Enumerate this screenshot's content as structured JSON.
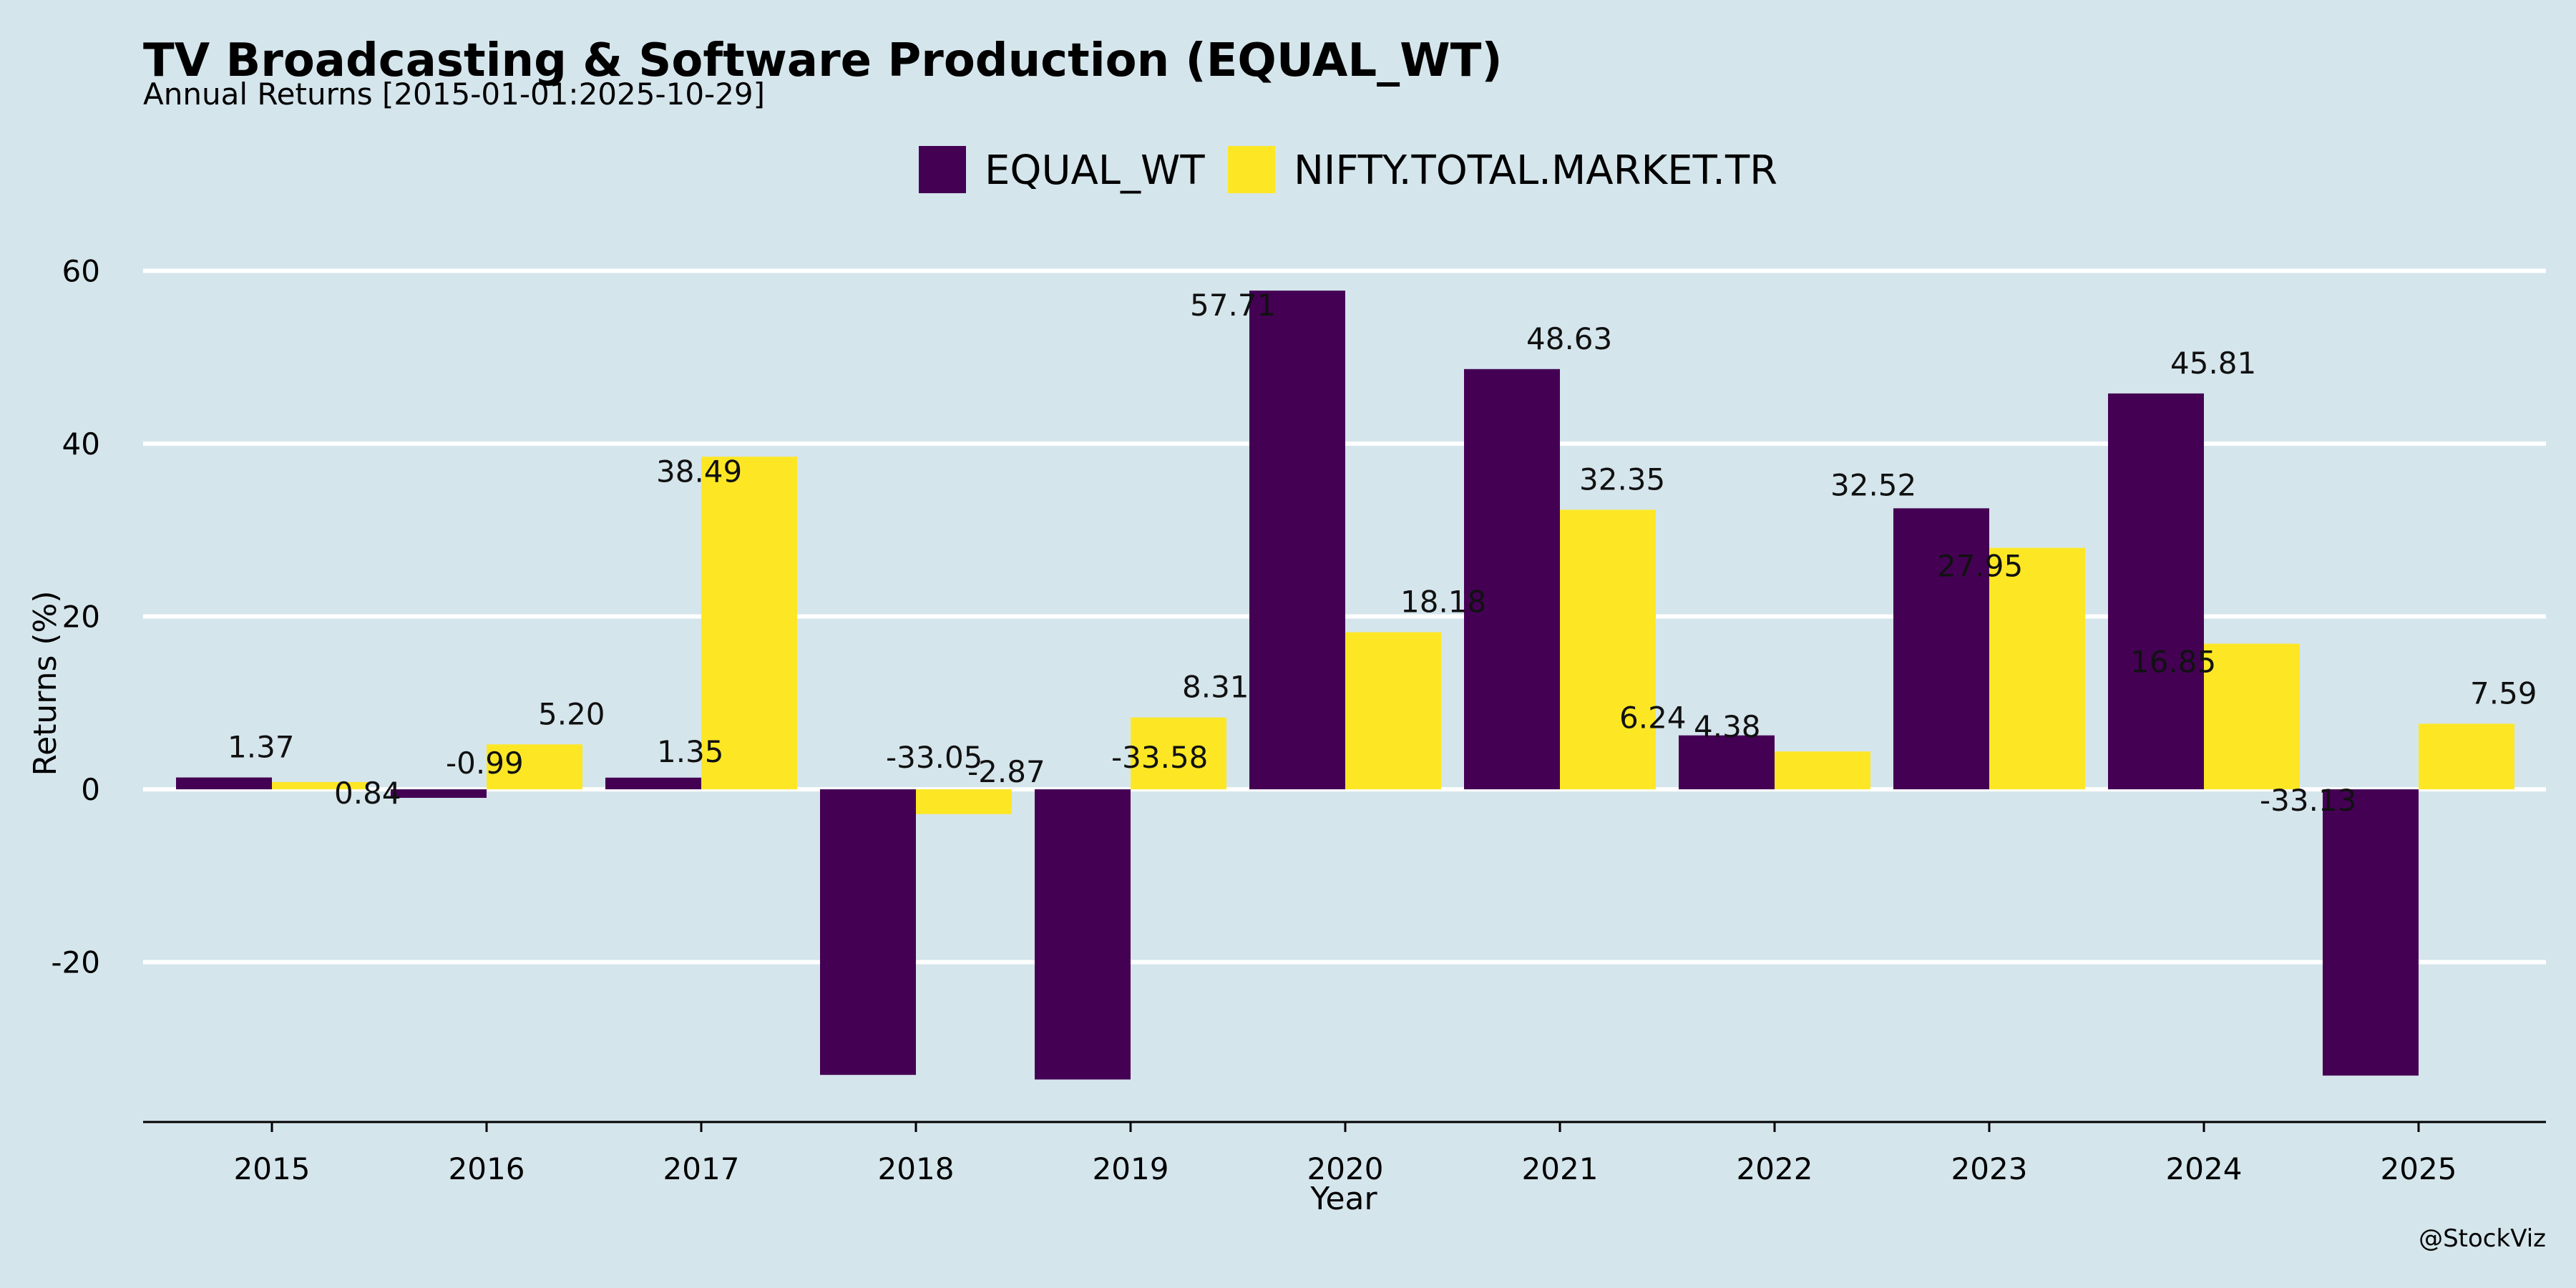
{
  "chart_data": {
    "type": "bar",
    "title": "TV Broadcasting & Software Production (EQUAL_WT)",
    "subtitle": "Annual Returns [2015-01-01:2025-10-29]",
    "xlabel": "Year",
    "ylabel": "Returns (%)",
    "categories": [
      "2015",
      "2016",
      "2017",
      "2018",
      "2019",
      "2020",
      "2021",
      "2022",
      "2023",
      "2024",
      "2025"
    ],
    "series": [
      {
        "name": "EQUAL_WT",
        "color": "#440154",
        "values": [
          1.37,
          -0.99,
          1.35,
          -33.05,
          -33.58,
          57.71,
          48.63,
          6.24,
          32.52,
          45.81,
          -33.13
        ],
        "labels": [
          "1.37",
          "-0.99",
          "1.35",
          "-33.05",
          "-33.58",
          "57.71",
          "48.63",
          "6.24",
          "32.52",
          "45.81",
          "-33.13"
        ]
      },
      {
        "name": "NIFTY.TOTAL.MARKET.TR",
        "color": "#fde725",
        "values": [
          0.84,
          5.2,
          38.49,
          -2.87,
          8.31,
          18.18,
          32.35,
          4.38,
          27.95,
          16.85,
          7.59
        ],
        "labels": [
          "0.84",
          "5.20",
          "38.49",
          "-2.87",
          "8.31",
          "18.18",
          "32.35",
          "4.38",
          "27.95",
          "16.85",
          "7.59"
        ]
      }
    ],
    "yticks": [
      -20,
      0,
      20,
      40,
      60
    ],
    "ytick_labels": [
      "-20",
      "0",
      "20",
      "40",
      "60"
    ],
    "ylim": [
      -38.5,
      66.5
    ],
    "grid": true,
    "legend_position": "top-center",
    "background": "#d5e5ec",
    "grid_color": "#ffffff"
  },
  "credit": "@StockViz"
}
